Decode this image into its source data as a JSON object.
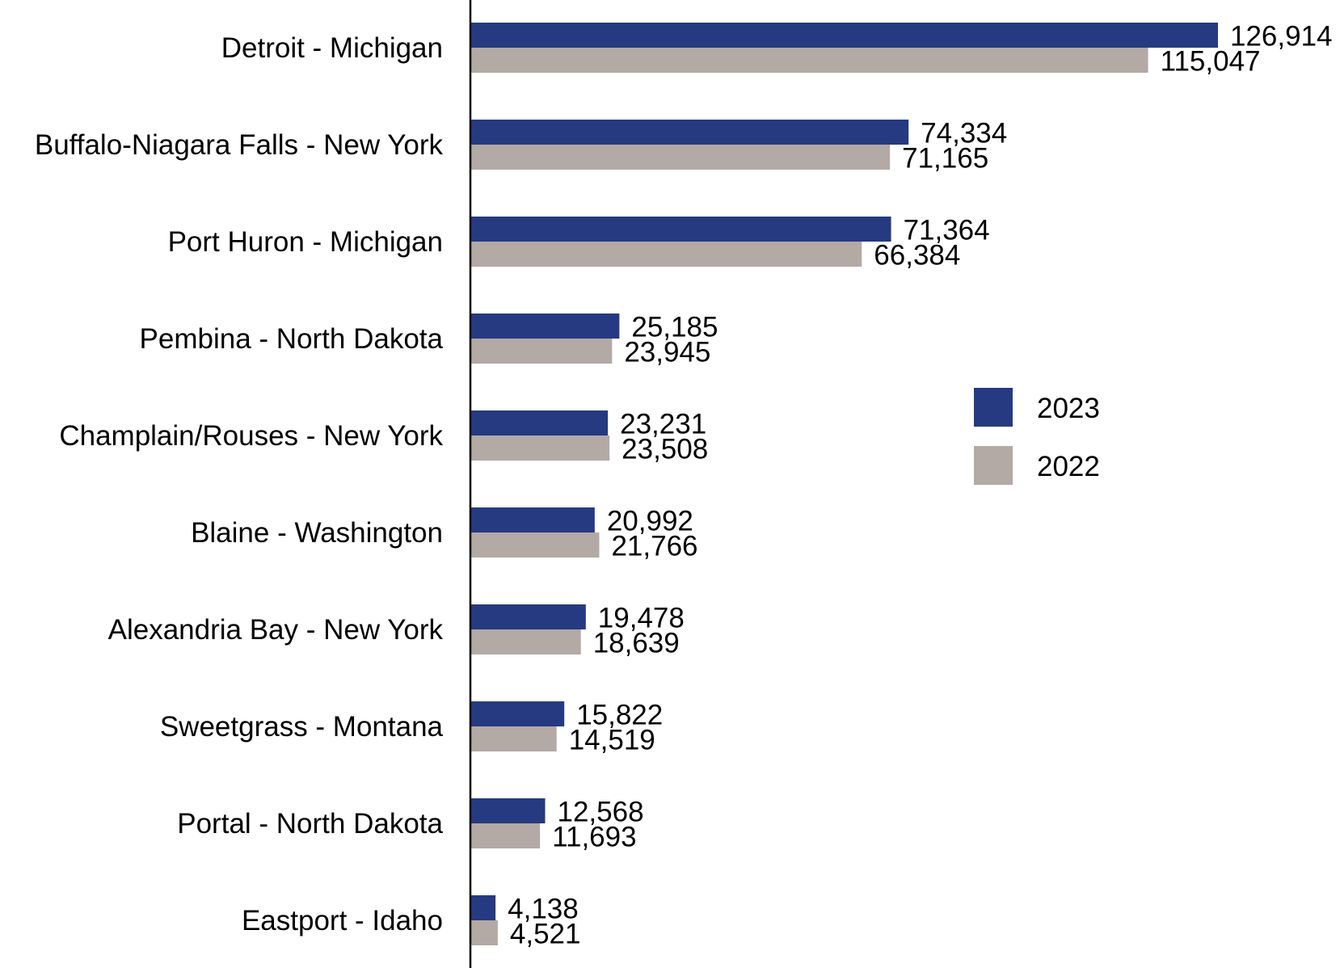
{
  "chart_data": {
    "type": "bar",
    "orientation": "horizontal",
    "title": "",
    "xlabel": "",
    "ylabel": "",
    "grid": false,
    "legend_position": "right",
    "xlim": [
      0,
      126914
    ],
    "categories": [
      "Detroit - Michigan",
      "Buffalo-Niagara Falls - New York",
      "Port Huron - Michigan",
      "Pembina - North Dakota",
      "Champlain/Rouses - New York",
      "Blaine - Washington",
      "Alexandria Bay - New York",
      "Sweetgrass - Montana",
      "Portal - North Dakota",
      "Eastport - Idaho"
    ],
    "series": [
      {
        "name": "2023",
        "color": "#253a80",
        "values": [
          126914,
          74334,
          71364,
          25185,
          23231,
          20992,
          19478,
          15822,
          12568,
          4138
        ],
        "labels": [
          "126,914",
          "74,334",
          "71,364",
          "25,185",
          "23,231",
          "20,992",
          "19,478",
          "15,822",
          "12,568",
          "4,138"
        ]
      },
      {
        "name": "2022",
        "color": "#b3a9a5",
        "values": [
          115047,
          71165,
          66384,
          23945,
          23508,
          21766,
          18639,
          14519,
          11693,
          4521
        ],
        "labels": [
          "115,047",
          "71,165",
          "66,384",
          "23,945",
          "23,508",
          "21,766",
          "18,639",
          "14,519",
          "11,693",
          "4,521"
        ]
      }
    ],
    "axis_color": "#000000"
  }
}
